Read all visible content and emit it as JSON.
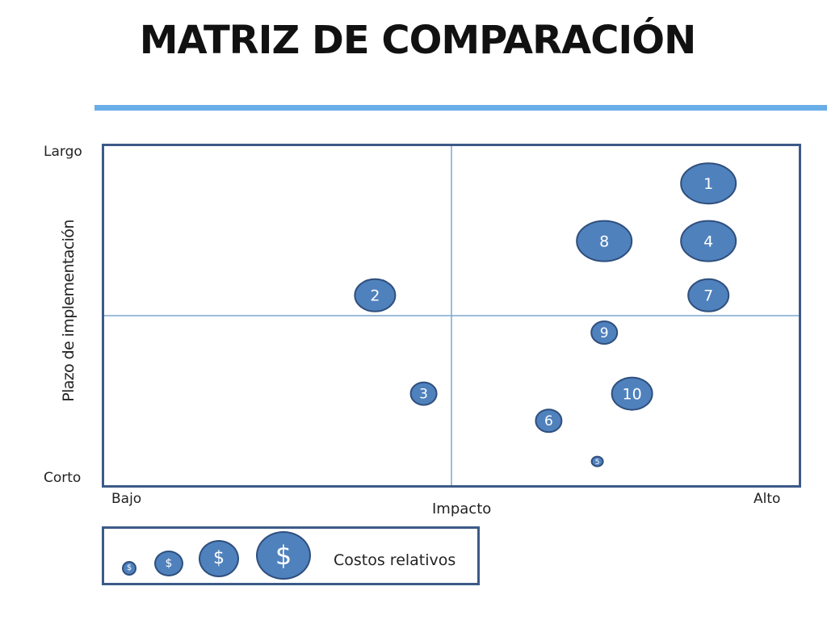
{
  "title": "MATRIZ DE COMPARACIÓN",
  "chart_data": {
    "type": "scatter",
    "title": "MATRIZ DE COMPARACIÓN",
    "xlabel": "Impacto",
    "ylabel": "Plazo de implementación",
    "x_axis_ends": {
      "low": "Bajo",
      "high": "Alto"
    },
    "y_axis_ends": {
      "low": "Corto",
      "high": "Largo"
    },
    "xlim": [
      0,
      10
    ],
    "ylim": [
      0,
      10
    ],
    "quadrant_lines": {
      "x": 5,
      "y": 5
    },
    "grid": false,
    "points": [
      {
        "label": "1",
        "x": 8.7,
        "y": 8.9,
        "cost": 4
      },
      {
        "label": "2",
        "x": 3.9,
        "y": 5.6,
        "cost": 3
      },
      {
        "label": "3",
        "x": 4.6,
        "y": 2.7,
        "cost": 2
      },
      {
        "label": "4",
        "x": 8.7,
        "y": 7.2,
        "cost": 4
      },
      {
        "label": "5",
        "x": 7.1,
        "y": 0.7,
        "cost": 1
      },
      {
        "label": "6",
        "x": 6.4,
        "y": 1.9,
        "cost": 2
      },
      {
        "label": "7",
        "x": 8.7,
        "y": 5.6,
        "cost": 3
      },
      {
        "label": "8",
        "x": 7.2,
        "y": 7.2,
        "cost": 4
      },
      {
        "label": "9",
        "x": 7.2,
        "y": 4.5,
        "cost": 2
      },
      {
        "label": "10",
        "x": 7.6,
        "y": 2.7,
        "cost": 3
      }
    ],
    "legend": {
      "label": "Costos relativos",
      "symbol": "$",
      "levels": [
        1,
        2,
        3,
        4
      ]
    },
    "colors": {
      "bubble_fill": "#4f81bd",
      "bubble_stroke": "#2f4f7d",
      "frame": "#3c5a88",
      "divider": "#7fa7cf",
      "title_rule": "#6aaee8"
    }
  }
}
